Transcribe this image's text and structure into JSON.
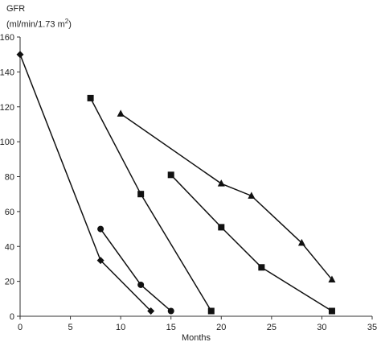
{
  "chart_data": {
    "type": "line",
    "xlabel": "Months",
    "ylabel_line1": "GFR",
    "ylabel_line2_prefix": "(ml/min/1.73 m",
    "ylabel_line2_sup": "2",
    "ylabel_line2_suffix": ")",
    "xlim": [
      0,
      35
    ],
    "ylim": [
      0,
      160
    ],
    "x_ticks": [
      0,
      5,
      10,
      15,
      20,
      25,
      30,
      35
    ],
    "x_tick_labels": [
      "0",
      "5",
      "10",
      "15",
      "20",
      "25",
      "30",
      "35"
    ],
    "y_ticks": [
      0,
      20,
      40,
      60,
      80,
      100,
      120,
      140,
      160
    ],
    "y_tick_labels": [
      "0",
      "20",
      "40",
      "60",
      "80",
      "100",
      "120",
      "140",
      "160"
    ],
    "grid": "none",
    "series": [
      {
        "marker": "diamond",
        "points": [
          [
            0,
            150
          ],
          [
            8,
            32
          ],
          [
            13,
            3
          ]
        ]
      },
      {
        "marker": "circle",
        "points": [
          [
            8,
            50
          ],
          [
            12,
            18
          ],
          [
            15,
            3
          ]
        ]
      },
      {
        "marker": "square",
        "points": [
          [
            7,
            125
          ],
          [
            12,
            70
          ],
          [
            19,
            3
          ]
        ]
      },
      {
        "marker": "square",
        "points": [
          [
            15,
            81
          ],
          [
            20,
            51
          ],
          [
            24,
            28
          ],
          [
            31,
            3
          ]
        ]
      },
      {
        "marker": "triangle",
        "points": [
          [
            10,
            116
          ],
          [
            20,
            76
          ],
          [
            23,
            69
          ],
          [
            28,
            42
          ],
          [
            31,
            21
          ]
        ]
      }
    ],
    "colors": {
      "line": "#111111",
      "axis": "#333333"
    }
  }
}
